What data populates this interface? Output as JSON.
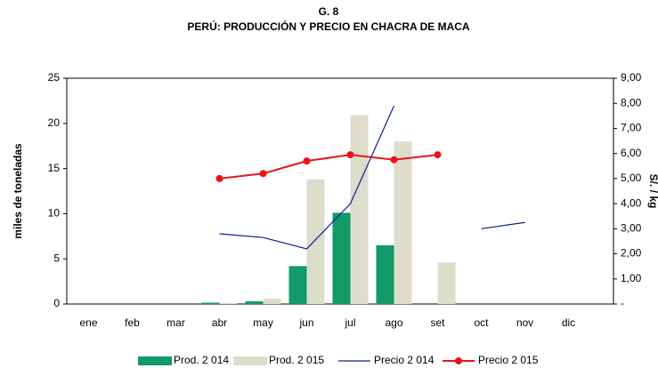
{
  "chart_data": {
    "type": "bar-line",
    "title": "G. 8",
    "subtitle": "PERÚ: PRODUCCIÓN Y PRECIO EN CHACRA DE MACA",
    "ylabel": "miles de toneladas",
    "y2label": "S/. / kg",
    "categories": [
      "ene",
      "feb",
      "mar",
      "abr",
      "may",
      "jun",
      "jul",
      "ago",
      "set",
      "oct",
      "nov",
      "dic"
    ],
    "ylim": [
      0,
      25
    ],
    "yticks": [
      0,
      5,
      10,
      15,
      20,
      25
    ],
    "y2lim": [
      0,
      9
    ],
    "y2ticks": [
      {
        "value": 0,
        "label": "-"
      },
      {
        "value": 1,
        "label": "1,00"
      },
      {
        "value": 2,
        "label": "2,00"
      },
      {
        "value": 3,
        "label": "3,00"
      },
      {
        "value": 4,
        "label": "4,00"
      },
      {
        "value": 5,
        "label": "5,00"
      },
      {
        "value": 6,
        "label": "6,00"
      },
      {
        "value": 7,
        "label": "7,00"
      },
      {
        "value": 8,
        "label": "8,00"
      },
      {
        "value": 9,
        "label": "9,00"
      }
    ],
    "series": [
      {
        "name": "Prod. 2 014",
        "kind": "bar",
        "color": "#129a6a",
        "values": [
          null,
          null,
          null,
          0.15,
          0.3,
          4.2,
          10.1,
          6.5,
          null,
          null,
          null,
          null
        ]
      },
      {
        "name": "Prod. 2 015",
        "kind": "bar",
        "color": "#deddcc",
        "values": [
          null,
          null,
          null,
          0.1,
          0.6,
          13.8,
          20.9,
          18.0,
          4.6,
          null,
          null,
          null
        ]
      },
      {
        "name": "Precio 2 014",
        "kind": "line",
        "axis": "y2",
        "color": "#0b1f8f",
        "values": [
          null,
          null,
          null,
          2.8,
          2.65,
          2.2,
          4.0,
          7.9,
          null,
          3.0,
          3.25,
          null
        ]
      },
      {
        "name": "Precio 2 015",
        "kind": "line",
        "axis": "y2",
        "marker": true,
        "color": "#e8141a",
        "values": [
          null,
          null,
          null,
          5.0,
          5.2,
          5.7,
          5.95,
          5.75,
          5.95,
          null,
          null,
          null
        ]
      }
    ]
  }
}
